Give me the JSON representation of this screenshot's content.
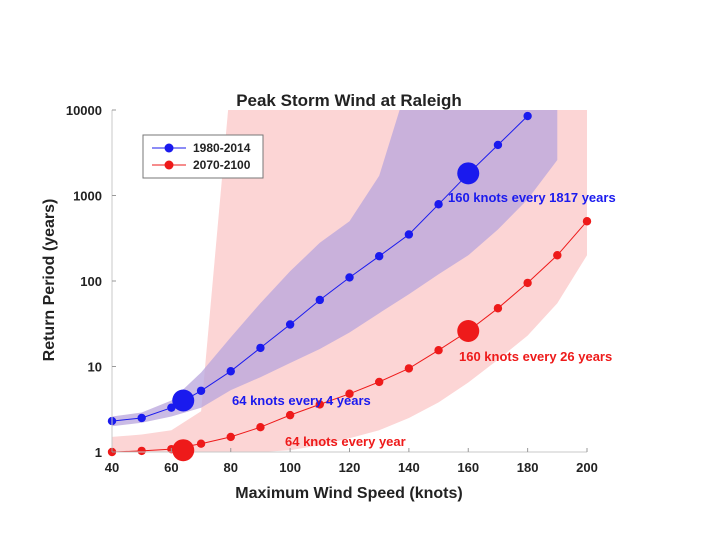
{
  "chart_data": {
    "type": "line",
    "title": "Peak Storm Wind at Raleigh",
    "xlabel": "Maximum Wind Speed (knots)",
    "ylabel": "Return Period (years)",
    "xlim": [
      40,
      200
    ],
    "ylim": [
      1,
      10000
    ],
    "yscale": "log",
    "xticks": [
      "40",
      "60",
      "80",
      "100",
      "120",
      "140",
      "160",
      "180",
      "200"
    ],
    "yticks": [
      "1",
      "10",
      "100",
      "1000",
      "10000"
    ],
    "legend_position": "top-left",
    "colors": {
      "blue": "#1a1aee",
      "red": "#ee1a1a",
      "red_band": "#fcd5d5",
      "blue_band": "#b8a4dc"
    },
    "series": [
      {
        "name": "1980-2014",
        "color": "#1a1aee",
        "x": [
          40,
          50,
          60,
          70,
          80,
          90,
          100,
          110,
          120,
          130,
          140,
          150,
          160,
          170,
          180
        ],
        "y": [
          2.3,
          2.5,
          3.3,
          5.2,
          8.8,
          16.5,
          31,
          60,
          110,
          195,
          350,
          790,
          1800,
          3900,
          8500
        ],
        "band_x": [
          40,
          50,
          60,
          70,
          80,
          90,
          100,
          110,
          120,
          130,
          140,
          150,
          160,
          170,
          180,
          190
        ],
        "band_low": [
          2.0,
          2.2,
          2.6,
          3.3,
          5.3,
          7.5,
          11,
          16,
          25,
          42,
          70,
          120,
          200,
          400,
          900,
          2600
        ],
        "band_high": [
          2.6,
          2.9,
          4.0,
          8.5,
          22,
          55,
          130,
          280,
          500,
          1700,
          30000,
          30000,
          30000,
          30000,
          30000,
          30000
        ]
      },
      {
        "name": "2070-2100",
        "color": "#ee1a1a",
        "x": [
          40,
          50,
          60,
          70,
          80,
          90,
          100,
          110,
          120,
          130,
          140,
          150,
          160,
          170,
          180,
          190,
          200
        ],
        "y": [
          1.0,
          1.03,
          1.08,
          1.25,
          1.5,
          1.95,
          2.7,
          3.6,
          4.8,
          6.6,
          9.5,
          15.5,
          26,
          48,
          95,
          200,
          500
        ],
        "band_x": [
          40,
          50,
          60,
          70,
          80,
          90,
          100,
          110,
          120,
          130,
          140,
          150,
          160,
          170,
          180,
          190,
          200
        ],
        "band_low": [
          1.0,
          1.0,
          1.0,
          1.0,
          1.0,
          1.0,
          1.05,
          1.2,
          1.45,
          1.8,
          2.5,
          3.8,
          6.5,
          12,
          23,
          55,
          200
        ],
        "band_high": [
          1.5,
          1.6,
          1.8,
          3.0,
          30000,
          30000,
          30000,
          30000,
          30000,
          30000,
          30000,
          30000,
          30000,
          30000,
          30000,
          30000,
          30000
        ]
      }
    ],
    "highlights": [
      {
        "series": "1980-2014",
        "x": 64,
        "y": 4,
        "label": "64 knots every 4 years"
      },
      {
        "series": "1980-2014",
        "x": 160,
        "y": 1817,
        "label": "160 knots every 1817 years"
      },
      {
        "series": "2070-2100",
        "x": 64,
        "y": 1.05,
        "label": "64 knots every year"
      },
      {
        "series": "2070-2100",
        "x": 160,
        "y": 26,
        "label": "160 knots every 26 years"
      }
    ]
  }
}
